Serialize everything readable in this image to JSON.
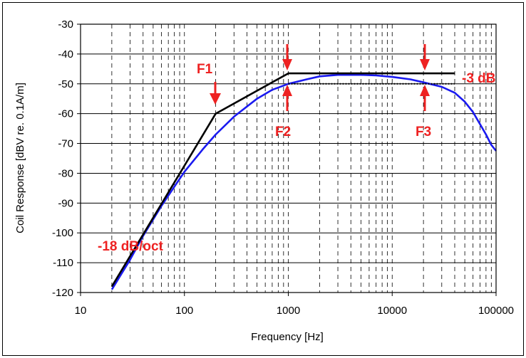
{
  "colors": {
    "measured": "#1a1af0",
    "asymptote": "#000000",
    "annotation": "#ee2222",
    "grid": "#000000"
  },
  "chart_data": {
    "type": "line",
    "xlabel": "Frequency [Hz]",
    "ylabel": "Coil Response [dBV re. 0.1A/m]",
    "xscale": "log",
    "xlim": [
      10,
      100000
    ],
    "ylim": [
      -120,
      -30
    ],
    "grid": true,
    "x_ticks": [
      "10",
      "100",
      "1000",
      "10000",
      "100000"
    ],
    "y_ticks": [
      "-30",
      "-40",
      "-50",
      "-60",
      "-70",
      "-80",
      "-90",
      "-100",
      "-110",
      "-120"
    ],
    "series": [
      {
        "role": "measured",
        "x": [
          20,
          30,
          40,
          60,
          80,
          100,
          150,
          200,
          300,
          500,
          700,
          1000,
          1500,
          2000,
          3000,
          5000,
          7000,
          10000,
          15000,
          20000,
          30000,
          40000,
          50000,
          60000,
          70000,
          80000,
          90000,
          100000
        ],
        "y": [
          -119,
          -109,
          -101,
          -91,
          -84.5,
          -79.5,
          -72,
          -67,
          -61,
          -55,
          -52,
          -50,
          -48.5,
          -47.5,
          -47,
          -47,
          -47.2,
          -47.7,
          -48.5,
          -49.5,
          -51,
          -53,
          -56,
          -59.5,
          -63.5,
          -67,
          -70.5,
          -72.5
        ]
      },
      {
        "role": "asymptote",
        "x": [
          20,
          200,
          1000,
          40000
        ],
        "y": [
          -118,
          -60,
          -46.5,
          -46.5
        ]
      },
      {
        "role": "minus-3db-reference",
        "x": [
          1000,
          40000
        ],
        "y": [
          -50,
          -50
        ]
      }
    ],
    "annotations": {
      "f1": "F1",
      "f2": "F2",
      "f3": "F3",
      "minus_3db": "-3 dB",
      "slope": "-18 dB/oct"
    }
  }
}
